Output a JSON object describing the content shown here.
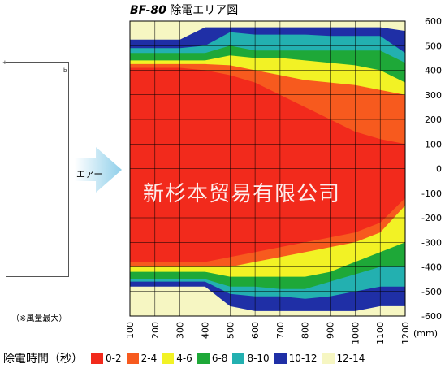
{
  "title": {
    "model": "BF-80",
    "text": "除電エリア図"
  },
  "device": {
    "mark_left": "+",
    "mark_right": "b"
  },
  "note": "（※風量最大）",
  "air_label": "エアー",
  "watermark": "新杉本贸易有限公司",
  "legend_title": "除電時間（秒）",
  "colors": {
    "band_0_2": "#f22a1c",
    "band_2_4": "#f75a1e",
    "band_4_6": "#f2f225",
    "band_6_8": "#1ea838",
    "band_8_10": "#23b0b0",
    "band_10_12": "#1f2fa6",
    "band_12_14": "#f6f6c2",
    "grid": "#000000"
  },
  "chart_data": {
    "type": "heatmap",
    "title": "BF-80 除電エリア図",
    "x": [
      100,
      200,
      300,
      400,
      500,
      600,
      700,
      800,
      900,
      1000,
      1100,
      1200
    ],
    "xlabel": "(mm)",
    "xlim": [
      100,
      1200
    ],
    "y_ticks": [
      600,
      500,
      400,
      300,
      200,
      100,
      0,
      -100,
      -200,
      -300,
      -400,
      -500,
      -600
    ],
    "ylim": [
      -600,
      600
    ],
    "grid": true,
    "legend_placement": "bottom",
    "bins": [
      {
        "label": "0-2",
        "min": 0,
        "max": 2,
        "color": "#f22a1c"
      },
      {
        "label": "2-4",
        "min": 2,
        "max": 4,
        "color": "#f75a1e"
      },
      {
        "label": "4-6",
        "min": 4,
        "max": 6,
        "color": "#f2f225"
      },
      {
        "label": "6-8",
        "min": 6,
        "max": 8,
        "color": "#1ea838"
      },
      {
        "label": "8-10",
        "min": 8,
        "max": 10,
        "color": "#23b0b0"
      },
      {
        "label": "10-12",
        "min": 10,
        "max": 12,
        "color": "#1f2fa6"
      },
      {
        "label": "12-14",
        "min": 12,
        "max": 14,
        "color": "#f6f6c2"
      }
    ],
    "bands": [
      {
        "bin": "10-12",
        "upper_y": [
          525,
          525,
          525,
          575,
          575,
          575,
          575,
          575,
          575,
          575,
          575,
          560
        ],
        "lower_y": [
          -480,
          -480,
          -480,
          -480,
          -560,
          -580,
          -580,
          -580,
          -580,
          -580,
          -560,
          -560
        ]
      },
      {
        "bin": "8-10",
        "upper_y": [
          490,
          490,
          490,
          500,
          555,
          545,
          545,
          545,
          540,
          540,
          540,
          470
        ],
        "lower_y": [
          -460,
          -460,
          -460,
          -460,
          -510,
          -520,
          -520,
          -530,
          -520,
          -500,
          -480,
          -480
        ]
      },
      {
        "bin": "6-8",
        "upper_y": [
          470,
          470,
          470,
          470,
          500,
          480,
          480,
          480,
          480,
          480,
          480,
          430
        ],
        "lower_y": [
          -450,
          -450,
          -450,
          -450,
          -480,
          -480,
          -490,
          -490,
          -460,
          -430,
          -400,
          -400
        ]
      },
      {
        "bin": "4-6",
        "upper_y": [
          440,
          440,
          440,
          440,
          460,
          450,
          450,
          440,
          430,
          420,
          400,
          350
        ],
        "lower_y": [
          -420,
          -420,
          -420,
          -420,
          -440,
          -440,
          -440,
          -440,
          -420,
          -380,
          -340,
          -300
        ]
      },
      {
        "bin": "2-4",
        "upper_y": [
          425,
          425,
          425,
          425,
          420,
          400,
          380,
          360,
          350,
          340,
          320,
          300
        ],
        "lower_y": [
          -400,
          -400,
          -400,
          -400,
          -400,
          -380,
          -360,
          -340,
          -320,
          -300,
          -260,
          -150
        ]
      },
      {
        "bin": "0-2",
        "upper_y": [
          410,
          410,
          410,
          400,
          380,
          350,
          300,
          250,
          200,
          150,
          120,
          100
        ],
        "lower_y": [
          -380,
          -380,
          -380,
          -380,
          -360,
          -340,
          -320,
          -300,
          -280,
          -260,
          -220,
          -120
        ]
      }
    ]
  }
}
